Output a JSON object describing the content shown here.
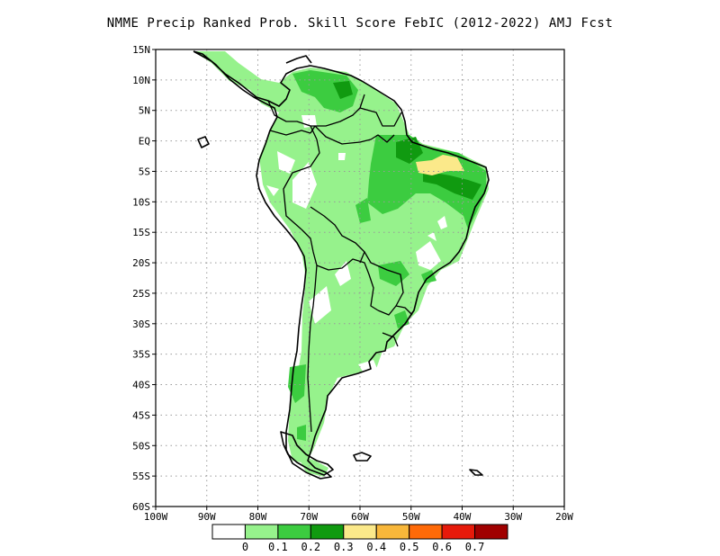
{
  "title": "NMME Precip Ranked Prob. Skill Score FebIC (2012-2022) AMJ Fcst",
  "map": {
    "region": "South America",
    "lat_range": [
      -60,
      15
    ],
    "lon_range": [
      -100,
      -20
    ],
    "grid": "dotted",
    "lat_ticks": [
      "15N",
      "10N",
      "5N",
      "EQ",
      "5S",
      "10S",
      "15S",
      "20S",
      "25S",
      "30S",
      "35S",
      "40S",
      "45S",
      "50S",
      "55S",
      "60S"
    ],
    "lon_ticks": [
      "100W",
      "90W",
      "80W",
      "70W",
      "60W",
      "50W",
      "40W",
      "30W",
      "20W"
    ]
  },
  "legend": {
    "labels": [
      "0",
      "0.1",
      "0.2",
      "0.3",
      "0.4",
      "0.5",
      "0.6",
      "0.7"
    ],
    "colors": [
      "#ffffff",
      "#96f28c",
      "#3ccc40",
      "#109a10",
      "#fbe98a",
      "#f8b73a",
      "#ff6a08",
      "#e61a0a",
      "#a00000"
    ]
  }
}
